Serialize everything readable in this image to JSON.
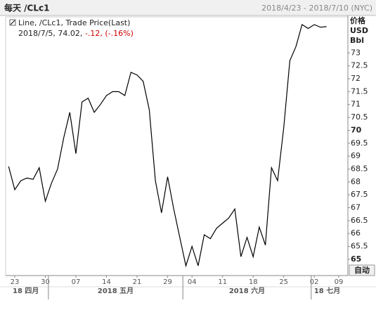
{
  "header": {
    "title": "每天 /CLc1",
    "range": "2018/4/23 - 2018/7/10 (NYC)"
  },
  "legend": {
    "line1": "Line, /CLc1, Trade Price(Last)",
    "date_last": "2018/7/5, 74.02,",
    "change": "-.12,",
    "change_pct": "(-.16%)"
  },
  "button": "自动",
  "chart_data": {
    "type": "line",
    "y_labels": [
      "价格",
      "USD",
      "Bbl"
    ],
    "categories": [
      "2018-04-20",
      "2018-04-23",
      "2018-04-24",
      "2018-04-25",
      "2018-04-26",
      "2018-04-27",
      "2018-04-30",
      "2018-05-01",
      "2018-05-02",
      "2018-05-03",
      "2018-05-04",
      "2018-05-07",
      "2018-05-08",
      "2018-05-09",
      "2018-05-10",
      "2018-05-11",
      "2018-05-14",
      "2018-05-15",
      "2018-05-16",
      "2018-05-17",
      "2018-05-18",
      "2018-05-21",
      "2018-05-22",
      "2018-05-23",
      "2018-05-24",
      "2018-05-25",
      "2018-05-29",
      "2018-05-30",
      "2018-05-31",
      "2018-06-01",
      "2018-06-04",
      "2018-06-05",
      "2018-06-06",
      "2018-06-07",
      "2018-06-08",
      "2018-06-11",
      "2018-06-12",
      "2018-06-13",
      "2018-06-14",
      "2018-06-15",
      "2018-06-18",
      "2018-06-19",
      "2018-06-20",
      "2018-06-21",
      "2018-06-22",
      "2018-06-25",
      "2018-06-26",
      "2018-06-27",
      "2018-06-28",
      "2018-06-29",
      "2018-07-02",
      "2018-07-03",
      "2018-07-05",
      "2018-07-06",
      "2018-07-09",
      "2018-07-10"
    ],
    "series": [
      {
        "name": "/CLc1",
        "color": "#000000",
        "values": [
          68.6,
          67.7,
          68.05,
          68.15,
          68.1,
          68.55,
          67.25,
          67.95,
          68.5,
          69.7,
          70.7,
          69.1,
          71.1,
          71.25,
          70.7,
          71.0,
          71.35,
          71.5,
          71.5,
          71.35,
          72.25,
          72.15,
          71.9,
          70.8,
          68.05,
          66.8,
          68.2,
          66.95,
          65.85,
          64.75,
          65.5,
          64.75,
          65.95,
          65.8,
          66.2,
          66.4,
          66.6,
          66.95,
          65.1,
          65.85,
          65.1,
          66.25,
          65.55,
          68.55,
          68.05,
          70.1,
          72.7,
          73.25,
          74.1,
          73.95,
          74.1,
          74.0,
          74.02,
          null,
          null,
          null
        ]
      }
    ],
    "xticks": [
      {
        "value": "2018-04-23",
        "label": "23"
      },
      {
        "value": "2018-04-30",
        "label": "30"
      },
      {
        "value": "2018-05-07",
        "label": "07"
      },
      {
        "value": "2018-05-14",
        "label": "14"
      },
      {
        "value": "2018-05-21",
        "label": "21"
      },
      {
        "value": "2018-05-29",
        "label": "29"
      },
      {
        "value": "2018-06-04",
        "label": "04"
      },
      {
        "value": "2018-06-11",
        "label": "11"
      },
      {
        "value": "2018-06-18",
        "label": "18"
      },
      {
        "value": "2018-06-25",
        "label": "25"
      },
      {
        "value": "2018-07-02",
        "label": "02"
      },
      {
        "value": "2018-07-09",
        "label": "09"
      }
    ],
    "month_labels": [
      {
        "label": "18 四月",
        "start": "2018-04-20"
      },
      {
        "label": "2018 五月",
        "start": "2018-05-01"
      },
      {
        "label": "2018 六月",
        "start": "2018-06-01"
      },
      {
        "label": "18 七月",
        "start": "2018-07-02"
      }
    ],
    "ylim": [
      64.37,
      74.4
    ],
    "yticks": [
      65,
      65.5,
      66,
      66.5,
      67,
      67.5,
      68,
      68.5,
      69,
      69.5,
      70,
      70.5,
      71,
      71.5,
      72,
      72.5,
      73
    ],
    "grid": false
  }
}
